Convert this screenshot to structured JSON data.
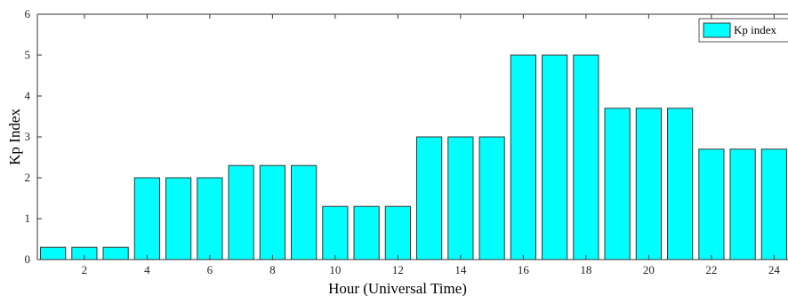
{
  "chart_data": {
    "type": "bar",
    "x": [
      1,
      2,
      3,
      4,
      5,
      6,
      7,
      8,
      9,
      10,
      11,
      12,
      13,
      14,
      15,
      16,
      17,
      18,
      19,
      20,
      21,
      22,
      23,
      24
    ],
    "series": [
      {
        "name": "Kp index",
        "values": [
          0.3,
          0.3,
          0.3,
          2,
          2,
          2,
          2.3,
          2.3,
          2.3,
          1.3,
          1.3,
          1.3,
          3,
          3,
          3,
          5,
          5,
          5,
          3.7,
          3.7,
          3.7,
          2.7,
          2.7,
          2.7
        ]
      }
    ],
    "xlabel": "Hour (Universal Time)",
    "ylabel": "Kp Index",
    "xticks": [
      "2",
      "4",
      "6",
      "8",
      "10",
      "12",
      "14",
      "16",
      "18",
      "20",
      "22",
      "24"
    ],
    "yticks": [
      "0",
      "1",
      "2",
      "3",
      "4",
      "5",
      "6"
    ],
    "ylim": [
      0,
      6
    ],
    "xlim": [
      0.5,
      24.5
    ],
    "grid": false,
    "legend": "top-right",
    "colors": {
      "bar_fill": "#00ffff",
      "bar_stroke": "#333333"
    }
  }
}
